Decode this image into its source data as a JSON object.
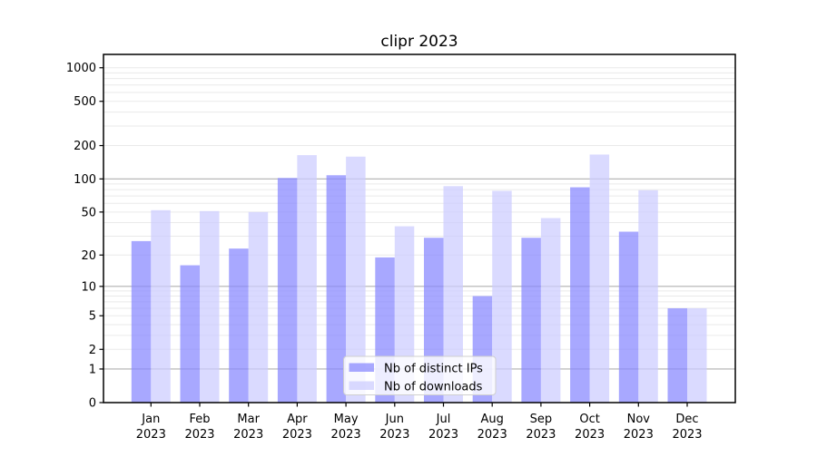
{
  "chart_data": {
    "type": "bar",
    "title": "clipr 2023",
    "categories": [
      "Jan 2023",
      "Feb 2023",
      "Mar 2023",
      "Apr 2023",
      "May 2023",
      "Jun 2023",
      "Jul 2023",
      "Aug 2023",
      "Sep 2023",
      "Oct 2023",
      "Nov 2023",
      "Dec 2023"
    ],
    "series": [
      {
        "name": "Nb of distinct IPs",
        "color": "rgba(134,134,255,0.72)",
        "values": [
          27,
          16,
          23,
          102,
          108,
          19,
          29,
          8,
          29,
          84,
          33,
          6
        ]
      },
      {
        "name": "Nb of downloads",
        "color": "rgba(204,204,255,0.72)",
        "values": [
          52,
          51,
          50,
          164,
          159,
          37,
          86,
          78,
          44,
          166,
          79,
          6
        ]
      }
    ],
    "y_axis": {
      "scale": "log1p",
      "tick_labels": [
        0,
        1,
        2,
        5,
        10,
        20,
        50,
        100,
        200,
        500,
        1000
      ],
      "major_gridlines_at": [
        1,
        10,
        100
      ],
      "ylim": [
        0,
        1300
      ]
    },
    "x_axis": {
      "tick_label_lines": 2
    },
    "grid": {
      "major_color": "#b0b0b0",
      "minor_color": "#eaeaea"
    },
    "legend": {
      "location": "lower center"
    }
  }
}
